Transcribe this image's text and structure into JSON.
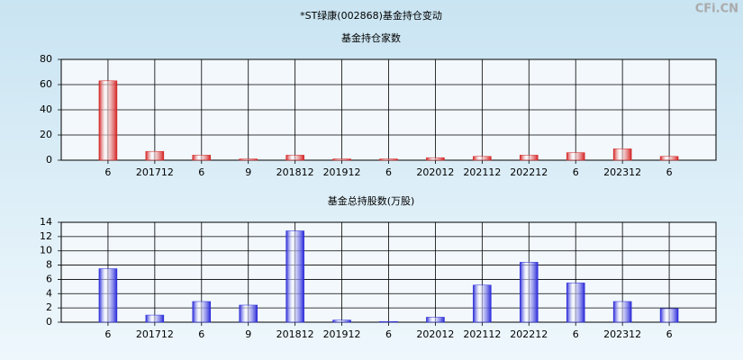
{
  "title": "*ST绿康(002868)基金持仓变动",
  "watermark": "CFi.CN",
  "chart_data": [
    {
      "type": "bar",
      "title": "基金持仓家数",
      "categories": [
        "6",
        "201712",
        "6",
        "9",
        "201812",
        "201912",
        "6",
        "202012",
        "202112",
        "202212",
        "6",
        "202312",
        "6"
      ],
      "values": [
        63,
        7,
        4,
        1,
        4,
        1,
        1,
        2,
        3,
        4,
        6,
        9,
        3
      ],
      "color": "#d42020",
      "ylim": [
        0,
        80
      ],
      "yticks": [
        0,
        20,
        40,
        60,
        80
      ],
      "grid": true
    },
    {
      "type": "bar",
      "title": "基金总持股数(万股)",
      "categories": [
        "6",
        "201712",
        "6",
        "9",
        "201812",
        "201912",
        "6",
        "202012",
        "202112",
        "202212",
        "6",
        "202312",
        "6"
      ],
      "values": [
        7.5,
        1.0,
        2.9,
        2.4,
        12.8,
        0.3,
        0.1,
        0.7,
        5.2,
        8.4,
        5.5,
        2.9,
        1.9
      ],
      "color": "#2626d8",
      "ylim": [
        0,
        14
      ],
      "yticks": [
        0,
        2,
        4,
        6,
        8,
        10,
        12,
        14
      ],
      "grid": true
    }
  ]
}
